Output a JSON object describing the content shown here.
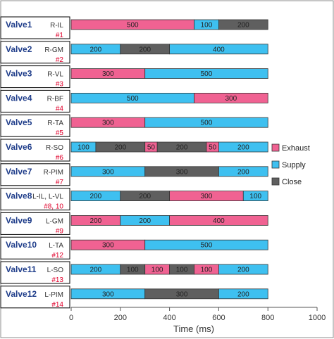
{
  "chart_data": {
    "type": "bar",
    "orientation": "horizontal",
    "stacked": true,
    "title": "",
    "xlabel": "Time (ms)",
    "ylabel": "",
    "xlim": [
      0,
      1000
    ],
    "xticks": [
      "0",
      "200",
      "400",
      "600",
      "800",
      "1000"
    ],
    "grid": false,
    "legend": {
      "position": "right",
      "entries": [
        "Exhaust",
        "Supply",
        "Close"
      ]
    },
    "colors": {
      "Exhaust": "#f06292",
      "Supply": "#3ec0f0",
      "Close": "#5f5f5f"
    },
    "rows": [
      {
        "valve": "Valve1",
        "muscle": "R-IL",
        "number": "#1",
        "segments": [
          {
            "state": "Exhaust",
            "value": 500
          },
          {
            "state": "Supply",
            "value": 100
          },
          {
            "state": "Close",
            "value": 200
          }
        ]
      },
      {
        "valve": "Valve2",
        "muscle": "R-GM",
        "number": "#2",
        "segments": [
          {
            "state": "Supply",
            "value": 200
          },
          {
            "state": "Close",
            "value": 200
          },
          {
            "state": "Supply",
            "value": 400
          }
        ]
      },
      {
        "valve": "Valve3",
        "muscle": "R-VL",
        "number": "#3",
        "segments": [
          {
            "state": "Exhaust",
            "value": 300
          },
          {
            "state": "Supply",
            "value": 500
          }
        ]
      },
      {
        "valve": "Valve4",
        "muscle": "R-BF",
        "number": "#4",
        "segments": [
          {
            "state": "Supply",
            "value": 500
          },
          {
            "state": "Exhaust",
            "value": 300
          }
        ]
      },
      {
        "valve": "Valve5",
        "muscle": "R-TA",
        "number": "#5",
        "segments": [
          {
            "state": "Exhaust",
            "value": 300
          },
          {
            "state": "Supply",
            "value": 500
          }
        ]
      },
      {
        "valve": "Valve6",
        "muscle": "R-SO",
        "number": "#6",
        "segments": [
          {
            "state": "Supply",
            "value": 100
          },
          {
            "state": "Close",
            "value": 200
          },
          {
            "state": "Exhaust",
            "value": 50
          },
          {
            "state": "Close",
            "value": 200
          },
          {
            "state": "Exhaust",
            "value": 50
          },
          {
            "state": "Supply",
            "value": 200
          }
        ]
      },
      {
        "valve": "Valve7",
        "muscle": "R-PIM",
        "number": "#7",
        "segments": [
          {
            "state": "Supply",
            "value": 300
          },
          {
            "state": "Close",
            "value": 300
          },
          {
            "state": "Supply",
            "value": 200
          }
        ]
      },
      {
        "valve": "Valve8",
        "muscle": "L-IL, L-VL",
        "number": "#8, 10",
        "segments": [
          {
            "state": "Supply",
            "value": 200
          },
          {
            "state": "Close",
            "value": 200
          },
          {
            "state": "Exhaust",
            "value": 300
          },
          {
            "state": "Supply",
            "value": 100
          }
        ]
      },
      {
        "valve": "Valve9",
        "muscle": "L-GM",
        "number": "#9",
        "segments": [
          {
            "state": "Exhaust",
            "value": 200
          },
          {
            "state": "Supply",
            "value": 200
          },
          {
            "state": "Exhaust",
            "value": 400
          }
        ]
      },
      {
        "valve": "Valve10",
        "muscle": "L-TA",
        "number": "#12",
        "segments": [
          {
            "state": "Exhaust",
            "value": 300
          },
          {
            "state": "Supply",
            "value": 500
          }
        ]
      },
      {
        "valve": "Valve11",
        "muscle": "L-SO",
        "number": "#13",
        "segments": [
          {
            "state": "Supply",
            "value": 200
          },
          {
            "state": "Close",
            "value": 100
          },
          {
            "state": "Exhaust",
            "value": 100
          },
          {
            "state": "Close",
            "value": 100
          },
          {
            "state": "Exhaust",
            "value": 100
          },
          {
            "state": "Supply",
            "value": 200
          }
        ]
      },
      {
        "valve": "Valve12",
        "muscle": "L-PIM",
        "number": "#14",
        "segments": [
          {
            "state": "Supply",
            "value": 300
          },
          {
            "state": "Close",
            "value": 300
          },
          {
            "state": "Supply",
            "value": 200
          }
        ]
      }
    ]
  }
}
